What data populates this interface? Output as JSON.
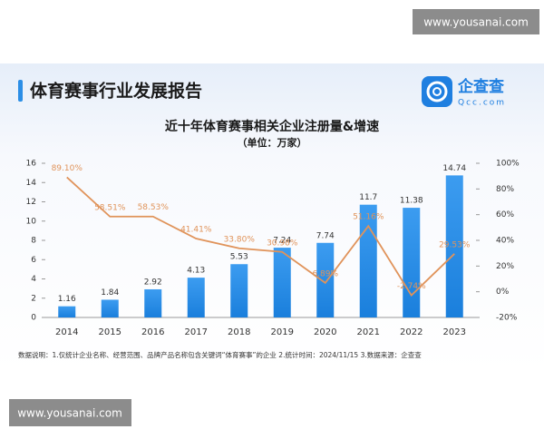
{
  "watermarks": [
    "www.yousanai.com",
    "www.yousanai.com"
  ],
  "header": {
    "title": "体育赛事行业发展报告",
    "logo_name": "企查查",
    "logo_domain": "Qcc.com"
  },
  "footnote": "数据说明：1.仅统计企业名称、经营范围、品牌产品名称包含关键词“体育赛事”的企业  2.统计时间：2024/11/15  3.数据来源：企查查",
  "chart_data": {
    "type": "bar",
    "title": "近十年体育赛事相关企业注册量&增速",
    "subtitle": "（单位：万家）",
    "categories": [
      "2014",
      "2015",
      "2016",
      "2017",
      "2018",
      "2019",
      "2020",
      "2021",
      "2022",
      "2023"
    ],
    "series": [
      {
        "type": "bar",
        "color": "#2b8ee6",
        "values": [
          1.16,
          1.84,
          2.92,
          4.13,
          5.53,
          7.24,
          7.74,
          11.7,
          11.38,
          14.74
        ]
      },
      {
        "type": "line",
        "axis": "y2",
        "color": "#e0935a",
        "values": [
          89.1,
          58.51,
          58.53,
          41.41,
          33.8,
          30.98,
          6.89,
          51.16,
          -2.74,
          29.53
        ],
        "value_labels": [
          "89.10%",
          "58.51%",
          "58.53%",
          "41.41%",
          "33.80%",
          "30.98%",
          "6.89%",
          "51.16%",
          "-2.74%",
          "29.53%"
        ]
      }
    ],
    "ylim": [
      0,
      16
    ],
    "yticks": [
      0,
      2,
      4,
      6,
      8,
      10,
      12,
      14,
      16
    ],
    "y2lim": [
      -20,
      100
    ],
    "y2ticks": [
      {
        "value": -20,
        "label": "-20%"
      },
      {
        "value": 0,
        "label": "0%"
      },
      {
        "value": 20,
        "label": "20%"
      },
      {
        "value": 40,
        "label": "40%"
      },
      {
        "value": 60,
        "label": "60%"
      },
      {
        "value": 80,
        "label": "80%"
      },
      {
        "value": 100,
        "label": "100%"
      }
    ]
  }
}
